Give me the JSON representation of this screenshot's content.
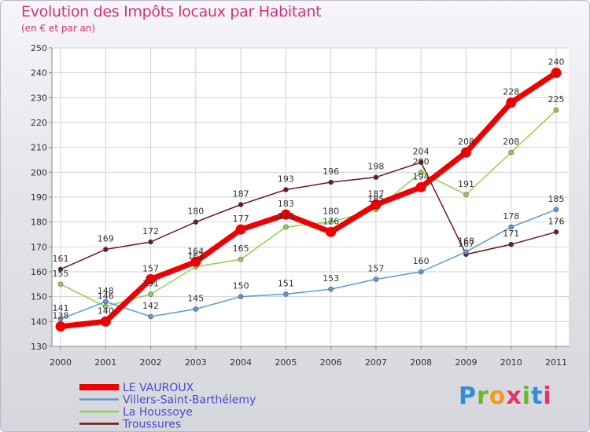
{
  "chart_data": {
    "type": "line",
    "title": "Evolution des Impôts locaux par Habitant",
    "subtitle": "(en € et par an)",
    "x": [
      "2000",
      "2001",
      "2002",
      "2003",
      "2004",
      "2005",
      "2006",
      "2007",
      "2008",
      "2009",
      "2010",
      "2011"
    ],
    "ylim": [
      130,
      250
    ],
    "yticks": [
      130,
      140,
      150,
      160,
      170,
      180,
      190,
      200,
      210,
      220,
      230,
      240,
      250
    ],
    "grid": true,
    "legend_position": "bottom-left",
    "series": [
      {
        "name": "LE VAUROUX",
        "color": "#ee0000",
        "values": [
          138,
          140,
          157,
          164,
          177,
          183,
          176,
          187,
          194,
          208,
          228,
          240
        ]
      },
      {
        "name": "Villers-Saint-Barthélemy",
        "color": "#5b9bd5",
        "values": [
          141,
          148,
          142,
          145,
          150,
          151,
          153,
          157,
          160,
          168,
          178,
          185
        ]
      },
      {
        "name": "La Houssoye",
        "color": "#8fd14f",
        "values": [
          155,
          146,
          151,
          162,
          165,
          178,
          180,
          185,
          200,
          191,
          208,
          225
        ]
      },
      {
        "name": "Troussures",
        "color": "#6b1a1a",
        "values": [
          161,
          169,
          172,
          180,
          187,
          193,
          196,
          198,
          204,
          167,
          171,
          176
        ]
      }
    ]
  },
  "logo": {
    "letters": [
      "P",
      "r",
      "o",
      "x",
      "i",
      "t",
      "i"
    ]
  }
}
